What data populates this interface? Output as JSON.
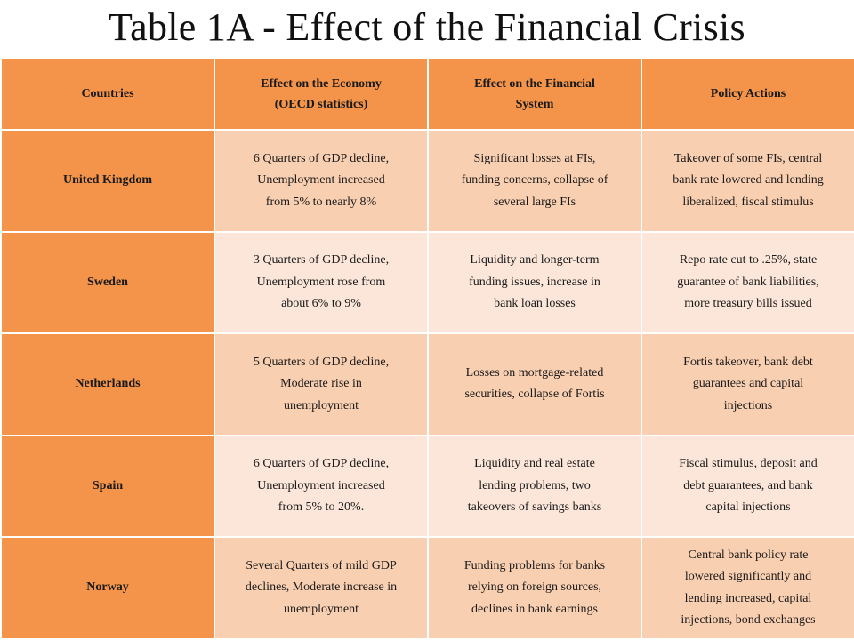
{
  "title": "Table 1A - Effect of the Financial Crisis",
  "colors": {
    "header_bg": "#f4944a",
    "row_odd": "#f9cfb1",
    "row_even": "#fbe6d9"
  },
  "headers": {
    "countries": "Countries",
    "economy_line1": "Effect on the Economy",
    "economy_line2": "(OECD statistics)",
    "financial_line1": "Effect on the Financial",
    "financial_line2": "System",
    "policy": "Policy Actions"
  },
  "rows": [
    {
      "country": "United Kingdom",
      "economy": [
        "6 Quarters of GDP decline,",
        "Unemployment increased",
        "from 5%  to nearly 8%"
      ],
      "financial": [
        "Significant losses at FIs,",
        "funding concerns,  collapse of",
        "several  large FIs"
      ],
      "policy": [
        "Takeover of some FIs, central",
        "bank rate lowered and lending",
        "liberalized,  fiscal stimulus"
      ]
    },
    {
      "country": "Sweden",
      "economy": [
        "3 Quarters of GDP decline,",
        "Unemployment rose from",
        "about 6% to 9%"
      ],
      "financial": [
        "Liquidity and longer-term",
        "funding issues, increase in",
        "bank loan losses"
      ],
      "policy": [
        "Repo rate cut to .25%, state",
        "guarantee of bank liabilities,",
        "more treasury bills issued"
      ]
    },
    {
      "country": "Netherlands",
      "economy": [
        "5 Quarters of GDP decline,",
        "Moderate rise in",
        "unemployment"
      ],
      "financial": [
        "Losses on mortgage-related",
        "securities, collapse of Fortis",
        ""
      ],
      "policy": [
        "Fortis takeover,  bank debt",
        "guarantees and capital",
        "injections"
      ]
    },
    {
      "country": "Spain",
      "economy": [
        "6 Quarters of GDP decline,",
        "Unemployment increased",
        "from 5% to 20%."
      ],
      "financial": [
        "Liquidity and real estate",
        "lending problems,  two",
        "takeovers of savings banks"
      ],
      "policy": [
        "Fiscal stimulus, deposit and",
        "debt guarantees,  and bank",
        "capital injections"
      ]
    },
    {
      "country": "Norway",
      "economy": [
        "Several Quarters of mild GDP",
        "declines, Moderate increase in",
        "unemployment"
      ],
      "financial": [
        "Funding problems for banks",
        "relying on foreign sources,",
        "declines in bank earnings"
      ],
      "policy": [
        "Central bank policy rate",
        "lowered significantly and",
        "lending increased, capital",
        "injections, bond exchanges"
      ]
    }
  ]
}
